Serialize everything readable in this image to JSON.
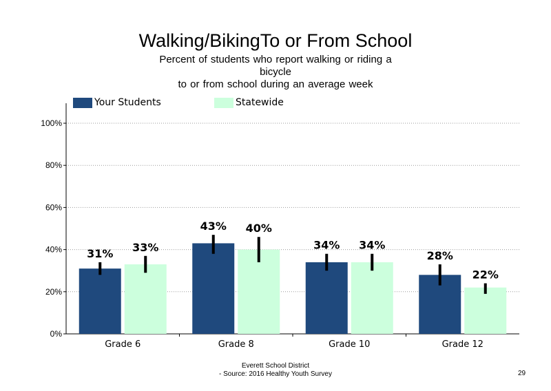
{
  "chart_data": {
    "type": "bar",
    "title": "Walking/BikingTo or From School",
    "subtitle_lines": [
      "Percent of students who report walking or riding a",
      "bicycle",
      "to or from school during an average week"
    ],
    "categories": [
      "Grade 6",
      "Grade 8",
      "Grade 10",
      "Grade 12"
    ],
    "series": [
      {
        "name": "Your Students",
        "color": "#1F497D",
        "values": [
          31,
          43,
          34,
          28
        ],
        "labels": [
          "31%",
          "43%",
          "34%",
          "28%"
        ],
        "error_low": [
          28,
          38,
          30,
          23
        ],
        "error_high": [
          34,
          47,
          38,
          33
        ]
      },
      {
        "name": "Statewide",
        "color": "#CCFFDD",
        "values": [
          33,
          40,
          34,
          22
        ],
        "labels": [
          "33%",
          "40%",
          "34%",
          "22%"
        ],
        "error_low": [
          29,
          34,
          30,
          19
        ],
        "error_high": [
          37,
          46,
          38,
          24
        ]
      }
    ],
    "ylim": [
      0,
      100
    ],
    "yticks": [
      {
        "value": 0,
        "label": "0%"
      },
      {
        "value": 20,
        "label": "20%"
      },
      {
        "value": 40,
        "label": "40%"
      },
      {
        "value": 60,
        "label": "60%"
      },
      {
        "value": 80,
        "label": "80%"
      },
      {
        "value": 100,
        "label": "100%"
      }
    ],
    "grid": "dotted horizontal",
    "legend_position": "top-left"
  },
  "footer": {
    "line1": "Everett School District",
    "line2": "- Source: 2016 Healthy Youth Survey",
    "page_number": "29"
  }
}
